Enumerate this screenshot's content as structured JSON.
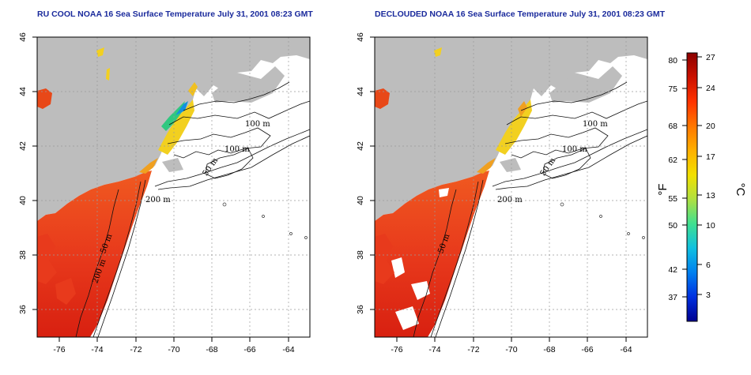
{
  "panels": [
    {
      "title": "RU COOL NOAA 16 Sea Surface Temperature July 31, 2001 08:23 GMT",
      "x_ticks": [
        "-76",
        "-74",
        "-72",
        "-70",
        "-68",
        "-66",
        "-64"
      ],
      "y_ticks": [
        "36",
        "38",
        "40",
        "42",
        "44",
        "46"
      ],
      "contour_labels": [
        "100 m",
        "100 m",
        "50 m",
        "200 m",
        "50 m",
        "200 m"
      ]
    },
    {
      "title": "DECLOUDED NOAA 16 Sea Surface Temperature July 31, 2001 08:23 GMT",
      "x_ticks": [
        "-76",
        "-74",
        "-72",
        "-70",
        "-68",
        "-66",
        "-64"
      ],
      "y_ticks": [
        "36",
        "38",
        "40",
        "42",
        "44",
        "46"
      ],
      "contour_labels": [
        "100 m",
        "100 m",
        "50 m",
        "200 m",
        "50 m"
      ]
    }
  ],
  "colorbar": {
    "fahrenheit_label": "°F",
    "celsius_label": "°C",
    "fahrenheit_ticks": [
      "80",
      "75",
      "68",
      "62",
      "55",
      "50",
      "42",
      "37"
    ],
    "celsius_ticks": [
      "27",
      "24",
      "20",
      "17",
      "13",
      "10",
      "6",
      "3"
    ],
    "colors": [
      "#8b0000",
      "#cc1100",
      "#ff3300",
      "#ff7700",
      "#ffb000",
      "#f2e000",
      "#b0e040",
      "#40e090",
      "#10c0e0",
      "#0080f0",
      "#0030e0",
      "#000090"
    ]
  },
  "colors": {
    "land": "#bdbdbd",
    "ocean": "#ffffff",
    "title": "#1a2a9c",
    "warm_water": "#f05020"
  }
}
